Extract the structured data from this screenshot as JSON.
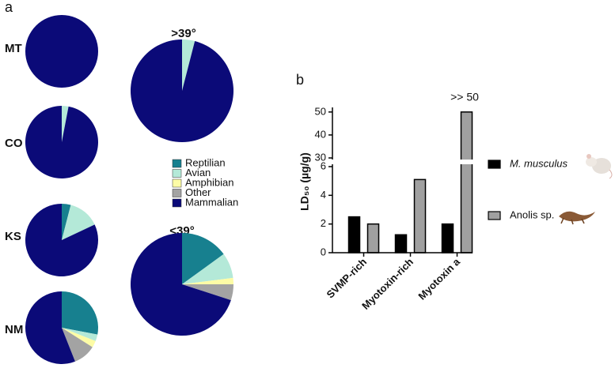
{
  "panels": [
    "a",
    "b"
  ],
  "chart_data": [
    {
      "type": "pie",
      "title": "MT",
      "categories": [
        "Reptilian",
        "Avian",
        "Amphibian",
        "Other",
        "Mammalian"
      ],
      "values": [
        0,
        0,
        0,
        0,
        100
      ],
      "colors": [
        "#17808f",
        "#b4e9d8",
        "#fdfca6",
        "#a3a3a3",
        "#0b0a78"
      ]
    },
    {
      "type": "pie",
      "title": "CO",
      "categories": [
        "Reptilian",
        "Avian",
        "Amphibian",
        "Other",
        "Mammalian"
      ],
      "values": [
        0,
        3,
        0,
        0,
        97
      ],
      "colors": [
        "#17808f",
        "#b4e9d8",
        "#fdfca6",
        "#a3a3a3",
        "#0b0a78"
      ]
    },
    {
      "type": "pie",
      "title": "KS",
      "categories": [
        "Reptilian",
        "Avian",
        "Amphibian",
        "Other",
        "Mammalian"
      ],
      "values": [
        4,
        14,
        0,
        0,
        82
      ],
      "colors": [
        "#17808f",
        "#b4e9d8",
        "#fdfca6",
        "#a3a3a3",
        "#0b0a78"
      ]
    },
    {
      "type": "pie",
      "title": "NM",
      "categories": [
        "Reptilian",
        "Avian",
        "Amphibian",
        "Other",
        "Mammalian"
      ],
      "values": [
        28,
        3,
        3,
        10,
        56
      ],
      "colors": [
        "#17808f",
        "#b4e9d8",
        "#fdfca6",
        "#a3a3a3",
        "#0b0a78"
      ]
    },
    {
      "type": "pie",
      "title": ">39°",
      "categories": [
        "Reptilian",
        "Avian",
        "Amphibian",
        "Other",
        "Mammalian"
      ],
      "values": [
        0,
        4,
        0,
        0,
        96
      ],
      "colors": [
        "#17808f",
        "#b4e9d8",
        "#fdfca6",
        "#a3a3a3",
        "#0b0a78"
      ]
    },
    {
      "type": "pie",
      "title": "<39°",
      "categories": [
        "Reptilian",
        "Avian",
        "Amphibian",
        "Other",
        "Mammalian"
      ],
      "values": [
        15,
        8,
        2,
        5,
        70
      ],
      "colors": [
        "#17808f",
        "#b4e9d8",
        "#fdfca6",
        "#a3a3a3",
        "#0b0a78"
      ]
    },
    {
      "type": "bar",
      "y_label": "LD₅₀ (µg/g)",
      "annotation": ">> 50",
      "categories": [
        "SVMP-rich",
        "Myotoxin-rich",
        "Myotoxin a"
      ],
      "series": [
        {
          "name": "M. musculus",
          "color": "#000000",
          "values": [
            2.5,
            1.25,
            2
          ]
        },
        {
          "name": "Anolis sp.",
          "color": "#a0a0a0",
          "values": [
            2,
            5.1,
            50
          ]
        }
      ],
      "ylim": [
        0,
        52
      ],
      "ybreak": [
        6,
        30
      ],
      "yticks": [
        0,
        2,
        4,
        6,
        30,
        40,
        50
      ]
    }
  ]
}
